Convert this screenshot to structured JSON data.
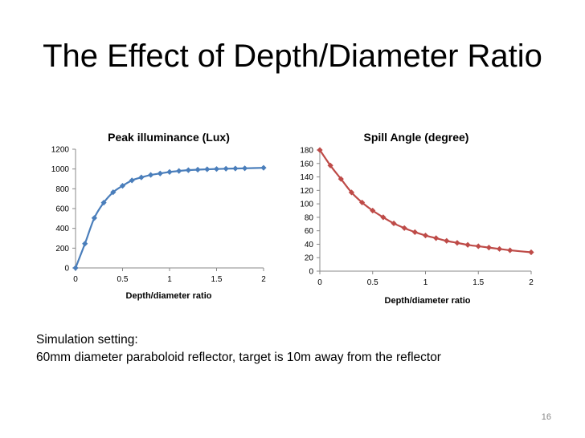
{
  "slide": {
    "title": "The Effect of Depth/Diameter Ratio",
    "note_heading": "Simulation setting:",
    "note_body": "60mm diameter paraboloid reflector, target is 10m away from the reflector",
    "page_number": "16"
  },
  "chart_data": [
    {
      "type": "line",
      "title": "Peak illuminance (Lux)",
      "xlabel": "Depth/diameter ratio",
      "ylabel": "",
      "xlim": [
        0,
        2
      ],
      "ylim": [
        0,
        1200
      ],
      "xticks": [
        "0",
        "0.5",
        "1",
        "1.5",
        "2"
      ],
      "yticks": [
        "0",
        "200",
        "400",
        "600",
        "800",
        "1000",
        "1200"
      ],
      "grid": false,
      "legend": "none",
      "series": [
        {
          "color": "#4a7ebb",
          "marker": "diamond",
          "x": [
            0,
            0.1,
            0.2,
            0.3,
            0.4,
            0.5,
            0.6,
            0.7,
            0.8,
            0.9,
            1.0,
            1.1,
            1.2,
            1.3,
            1.4,
            1.5,
            1.6,
            1.7,
            1.8,
            2.0
          ],
          "y": [
            0,
            245,
            505,
            660,
            765,
            830,
            885,
            915,
            940,
            955,
            970,
            980,
            988,
            993,
            997,
            1000,
            1003,
            1005,
            1007,
            1012
          ]
        }
      ]
    },
    {
      "type": "line",
      "title": "Spill Angle (degree)",
      "xlabel": "Depth/diameter ratio",
      "ylabel": "",
      "xlim": [
        0,
        2
      ],
      "ylim": [
        0,
        180
      ],
      "xticks": [
        "0",
        "0.5",
        "1",
        "1.5",
        "2"
      ],
      "yticks": [
        "0",
        "20",
        "40",
        "60",
        "80",
        "100",
        "120",
        "140",
        "160",
        "180"
      ],
      "grid": false,
      "legend": "none",
      "series": [
        {
          "color": "#be4b48",
          "marker": "diamond",
          "x": [
            0,
            0.1,
            0.2,
            0.3,
            0.4,
            0.5,
            0.6,
            0.7,
            0.8,
            0.9,
            1.0,
            1.1,
            1.2,
            1.3,
            1.4,
            1.5,
            1.6,
            1.7,
            1.8,
            2.0
          ],
          "y": [
            180,
            157,
            137,
            117,
            102,
            90,
            80,
            71,
            64,
            58,
            53,
            49,
            45,
            42,
            39,
            37,
            35,
            33,
            31,
            28
          ]
        }
      ]
    }
  ]
}
